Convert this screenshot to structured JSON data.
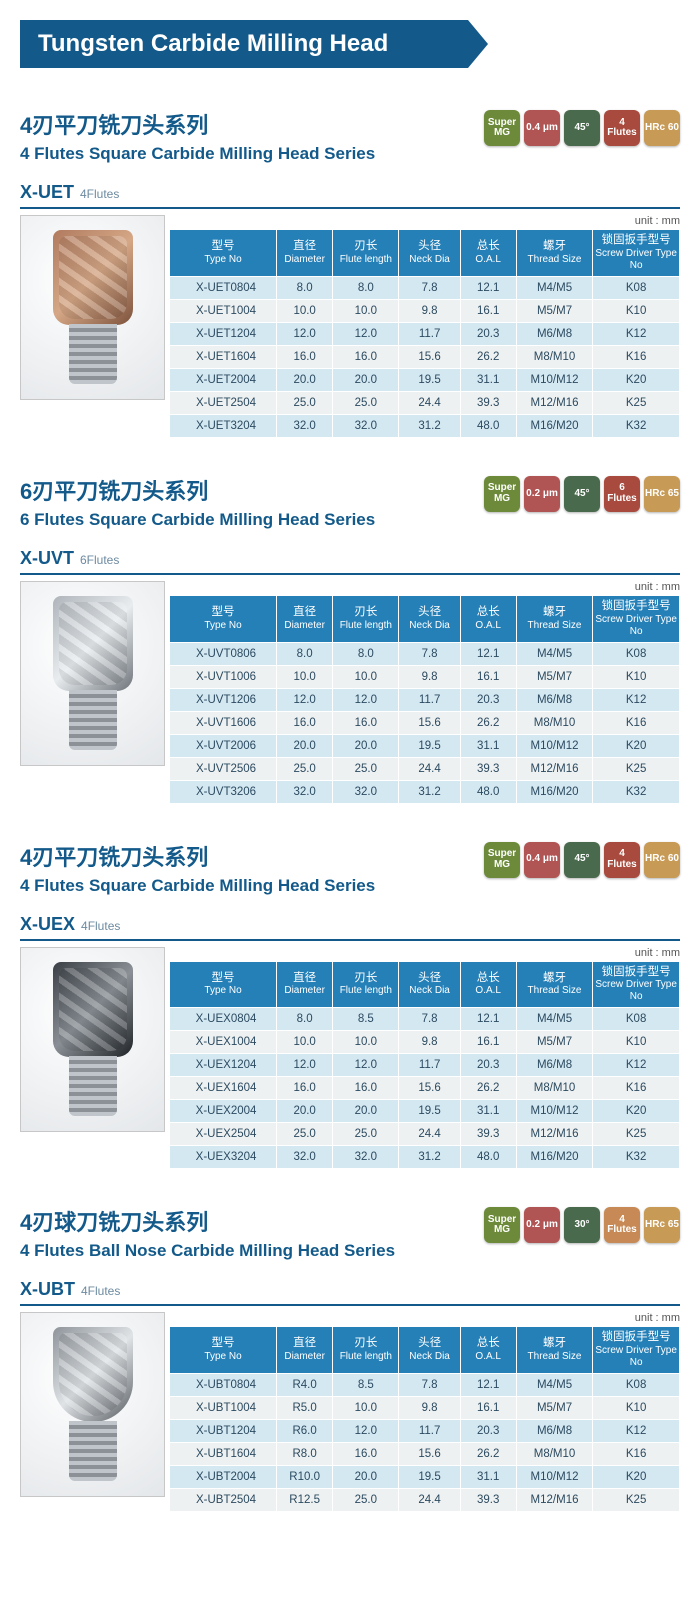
{
  "page_title": "Tungsten Carbide Milling Head",
  "columns": [
    {
      "cn": "型号",
      "en": "Type No"
    },
    {
      "cn": "直径",
      "en": "Diameter"
    },
    {
      "cn": "刃长",
      "en": "Flute length"
    },
    {
      "cn": "头径",
      "en": "Neck Dia"
    },
    {
      "cn": "总长",
      "en": "O.A.L"
    },
    {
      "cn": "螺牙",
      "en": "Thread Size"
    },
    {
      "cn": "锁固扳手型号",
      "en": "Screw Driver Type No"
    }
  ],
  "col_widths": [
    "21%",
    "11%",
    "13%",
    "12%",
    "11%",
    "15%",
    "17%"
  ],
  "unit_label": "unit : mm",
  "header_bg": "#2680b8",
  "header_fg": "#ffffff",
  "row_odd_bg": "#d4e8f2",
  "row_even_bg": "#eef1f1",
  "title_color": "#135a8a",
  "sections": [
    {
      "title_cn": "4刃平刀铣刀头系列",
      "title_en": "4 Flutes Square Carbide Milling Head Series",
      "model_code": "X-UET",
      "model_note": "4Flutes",
      "img_variant": "square",
      "badges": [
        {
          "text": "Super MG",
          "bg": "#6c8a3a"
        },
        {
          "text": "0.4 μm",
          "bg": "#b05454"
        },
        {
          "text": "45°",
          "bg": "#4a6a4d"
        },
        {
          "text": "4 Flutes",
          "bg": "#a84a3d"
        },
        {
          "text": "HRc 60",
          "bg": "#c79a56"
        }
      ],
      "rows": [
        [
          "X-UET0804",
          "8.0",
          "8.0",
          "7.8",
          "12.1",
          "M4/M5",
          "K08"
        ],
        [
          "X-UET1004",
          "10.0",
          "10.0",
          "9.8",
          "16.1",
          "M5/M7",
          "K10"
        ],
        [
          "X-UET1204",
          "12.0",
          "12.0",
          "11.7",
          "20.3",
          "M6/M8",
          "K12"
        ],
        [
          "X-UET1604",
          "16.0",
          "16.0",
          "15.6",
          "26.2",
          "M8/M10",
          "K16"
        ],
        [
          "X-UET2004",
          "20.0",
          "20.0",
          "19.5",
          "31.1",
          "M10/M12",
          "K20"
        ],
        [
          "X-UET2504",
          "25.0",
          "25.0",
          "24.4",
          "39.3",
          "M12/M16",
          "K25"
        ],
        [
          "X-UET3204",
          "32.0",
          "32.0",
          "31.2",
          "48.0",
          "M16/M20",
          "K32"
        ]
      ]
    },
    {
      "title_cn": "6刃平刀铣刀头系列",
      "title_en": "6 Flutes Square Carbide Milling Head Series",
      "model_code": "X-UVT",
      "model_note": "6Flutes",
      "img_variant": "square2",
      "badges": [
        {
          "text": "Super MG",
          "bg": "#6c8a3a"
        },
        {
          "text": "0.2 μm",
          "bg": "#b05454"
        },
        {
          "text": "45°",
          "bg": "#4a6a4d"
        },
        {
          "text": "6 Flutes",
          "bg": "#a84a3d"
        },
        {
          "text": "HRc 65",
          "bg": "#c79a56"
        }
      ],
      "rows": [
        [
          "X-UVT0806",
          "8.0",
          "8.0",
          "7.8",
          "12.1",
          "M4/M5",
          "K08"
        ],
        [
          "X-UVT1006",
          "10.0",
          "10.0",
          "9.8",
          "16.1",
          "M5/M7",
          "K10"
        ],
        [
          "X-UVT1206",
          "12.0",
          "12.0",
          "11.7",
          "20.3",
          "M6/M8",
          "K12"
        ],
        [
          "X-UVT1606",
          "16.0",
          "16.0",
          "15.6",
          "26.2",
          "M8/M10",
          "K16"
        ],
        [
          "X-UVT2006",
          "20.0",
          "20.0",
          "19.5",
          "31.1",
          "M10/M12",
          "K20"
        ],
        [
          "X-UVT2506",
          "25.0",
          "25.0",
          "24.4",
          "39.3",
          "M12/M16",
          "K25"
        ],
        [
          "X-UVT3206",
          "32.0",
          "32.0",
          "31.2",
          "48.0",
          "M16/M20",
          "K32"
        ]
      ]
    },
    {
      "title_cn": "4刃平刀铣刀头系列",
      "title_en": "4 Flutes Square Carbide Milling Head Series",
      "model_code": "X-UEX",
      "model_note": "4Flutes",
      "img_variant": "dark",
      "badges": [
        {
          "text": "Super MG",
          "bg": "#6c8a3a"
        },
        {
          "text": "0.4 μm",
          "bg": "#b05454"
        },
        {
          "text": "45°",
          "bg": "#4a6a4d"
        },
        {
          "text": "4 Flutes",
          "bg": "#a84a3d"
        },
        {
          "text": "HRc 60",
          "bg": "#c79a56"
        }
      ],
      "rows": [
        [
          "X-UEX0804",
          "8.0",
          "8.5",
          "7.8",
          "12.1",
          "M4/M5",
          "K08"
        ],
        [
          "X-UEX1004",
          "10.0",
          "10.0",
          "9.8",
          "16.1",
          "M5/M7",
          "K10"
        ],
        [
          "X-UEX1204",
          "12.0",
          "12.0",
          "11.7",
          "20.3",
          "M6/M8",
          "K12"
        ],
        [
          "X-UEX1604",
          "16.0",
          "16.0",
          "15.6",
          "26.2",
          "M8/M10",
          "K16"
        ],
        [
          "X-UEX2004",
          "20.0",
          "20.0",
          "19.5",
          "31.1",
          "M10/M12",
          "K20"
        ],
        [
          "X-UEX2504",
          "25.0",
          "25.0",
          "24.4",
          "39.3",
          "M12/M16",
          "K25"
        ],
        [
          "X-UEX3204",
          "32.0",
          "32.0",
          "31.2",
          "48.0",
          "M16/M20",
          "K32"
        ]
      ]
    },
    {
      "title_cn": "4刃球刀铣刀头系列",
      "title_en": "4 Flutes Ball Nose Carbide Milling Head Series",
      "model_code": "X-UBT",
      "model_note": "4Flutes",
      "img_variant": "ball",
      "badges": [
        {
          "text": "Super MG",
          "bg": "#6c8a3a"
        },
        {
          "text": "0.2 μm",
          "bg": "#b05454"
        },
        {
          "text": "30°",
          "bg": "#4a6a4d"
        },
        {
          "text": "4 Flutes",
          "bg": "#c78a56"
        },
        {
          "text": "HRc 65",
          "bg": "#c79a56"
        }
      ],
      "rows": [
        [
          "X-UBT0804",
          "R4.0",
          "8.5",
          "7.8",
          "12.1",
          "M4/M5",
          "K08"
        ],
        [
          "X-UBT1004",
          "R5.0",
          "10.0",
          "9.8",
          "16.1",
          "M5/M7",
          "K10"
        ],
        [
          "X-UBT1204",
          "R6.0",
          "12.0",
          "11.7",
          "20.3",
          "M6/M8",
          "K12"
        ],
        [
          "X-UBT1604",
          "R8.0",
          "16.0",
          "15.6",
          "26.2",
          "M8/M10",
          "K16"
        ],
        [
          "X-UBT2004",
          "R10.0",
          "20.0",
          "19.5",
          "31.1",
          "M10/M12",
          "K20"
        ],
        [
          "X-UBT2504",
          "R12.5",
          "25.0",
          "24.4",
          "39.3",
          "M12/M16",
          "K25"
        ]
      ]
    }
  ]
}
